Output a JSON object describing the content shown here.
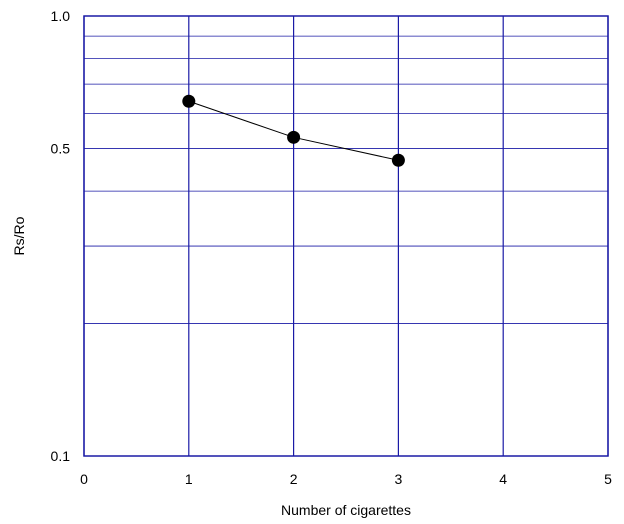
{
  "chart_data": {
    "type": "line",
    "title": "",
    "xlabel": "Number of cigarettes",
    "ylabel": "Rs/Ro",
    "xlim": [
      0,
      5
    ],
    "ylim": [
      0.1,
      1.0
    ],
    "yscale": "log",
    "x_ticks": [
      0,
      1,
      2,
      3,
      4,
      5
    ],
    "y_tick_labels": [
      {
        "value": 1.0,
        "label": "1.0"
      },
      {
        "value": 0.5,
        "label": "0.5"
      },
      {
        "value": 0.1,
        "label": "0.1"
      }
    ],
    "y_gridlines": [
      0.1,
      0.2,
      0.3,
      0.4,
      0.5,
      0.6,
      0.7,
      0.8,
      0.9,
      1.0
    ],
    "grid": true,
    "series": [
      {
        "x": [
          1,
          2,
          3
        ],
        "y": [
          0.64,
          0.53,
          0.47
        ]
      }
    ],
    "colors": {
      "grid": "#1a1aa6",
      "frame": "#1a1aa6",
      "line": "#000000",
      "marker": "#000000"
    }
  }
}
